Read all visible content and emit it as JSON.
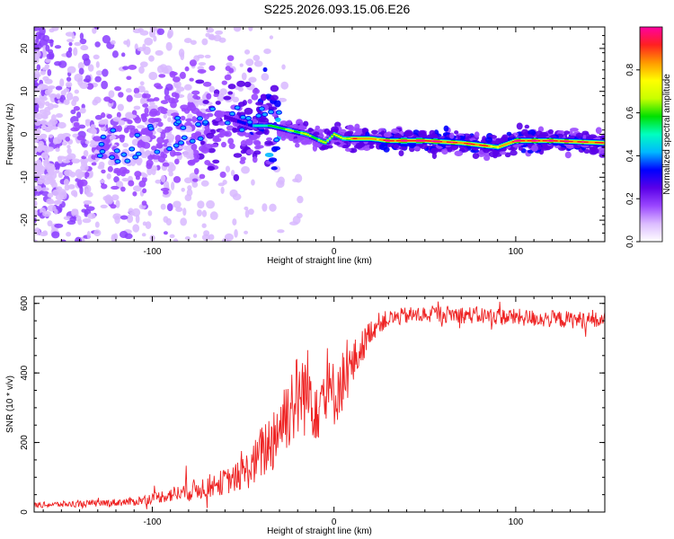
{
  "title": "S225.2026.093.15.06.E26",
  "chart_data": [
    {
      "type": "heatmap",
      "xlabel": "Height of straight line (km)",
      "ylabel": "Frequency (Hz)",
      "xlim": [
        -165,
        149
      ],
      "ylim": [
        -25,
        25
      ],
      "xticks": [
        -100,
        0,
        100
      ],
      "yticks": [
        -20,
        -10,
        0,
        10,
        20
      ],
      "colorbar": {
        "label": "Normalized spectral amplitude",
        "range": [
          0,
          1
        ],
        "ticks": [
          "0.0",
          "0.2",
          "0.4",
          "0.6",
          "0.8"
        ],
        "tick_values": [
          0,
          0.2,
          0.4,
          0.6,
          0.8
        ],
        "colors": [
          "#ffffff",
          "#dcbcff",
          "#9a47ff",
          "#5a00e8",
          "#0000ff",
          "#00b8ff",
          "#00ffc0",
          "#00e000",
          "#c8ff00",
          "#ffff00",
          "#ff9900",
          "#ff2020",
          "#ff00a0"
        ]
      },
      "ridge": {
        "x": [
          -165,
          -140,
          -120,
          -100,
          -80,
          -60,
          -45,
          -35,
          -25,
          -15,
          -10,
          -5,
          0,
          5,
          10,
          15,
          20,
          30,
          50,
          70,
          80,
          90,
          100,
          120,
          149
        ],
        "y": [
          -2,
          -3,
          -3,
          -1,
          2,
          4,
          2,
          2,
          1,
          0,
          -1,
          -2,
          0,
          -1,
          -1,
          -1,
          -1,
          -1.5,
          -1.5,
          -2,
          -2.5,
          -3,
          -1.5,
          -1.5,
          -2
        ],
        "amplitude": [
          0.1,
          0.15,
          0.2,
          0.2,
          0.25,
          0.3,
          0.4,
          0.5,
          0.55,
          0.6,
          0.55,
          0.6,
          0.65,
          0.6,
          0.75,
          0.8,
          0.7,
          0.85,
          0.9,
          0.8,
          0.85,
          0.7,
          0.85,
          0.85,
          0.8
        ]
      }
    },
    {
      "type": "line",
      "xlabel": "Height of straight line (km)",
      "ylabel": "SNR (10 * v/v)",
      "xlim": [
        -165,
        149
      ],
      "ylim": [
        0,
        620
      ],
      "xticks": [
        -100,
        0,
        100
      ],
      "yticks": [
        0,
        200,
        400,
        600
      ],
      "color": "#ee2222",
      "envelope": {
        "x": [
          -165,
          -130,
          -110,
          -95,
          -80,
          -65,
          -55,
          -45,
          -40,
          -35,
          -30,
          -25,
          -20,
          -15,
          -10,
          -5,
          0,
          5,
          10,
          15,
          20,
          25,
          30,
          40,
          60,
          80,
          100,
          120,
          149
        ],
        "y": [
          20,
          25,
          30,
          45,
          60,
          80,
          95,
          130,
          170,
          200,
          250,
          300,
          330,
          350,
          320,
          330,
          340,
          380,
          420,
          470,
          520,
          545,
          555,
          565,
          570,
          565,
          560,
          555,
          550
        ],
        "noise": [
          8,
          10,
          12,
          18,
          30,
          35,
          40,
          60,
          80,
          100,
          110,
          120,
          130,
          130,
          120,
          110,
          100,
          90,
          70,
          50,
          35,
          30,
          25,
          25,
          25,
          25,
          25,
          25,
          25
        ]
      }
    }
  ]
}
